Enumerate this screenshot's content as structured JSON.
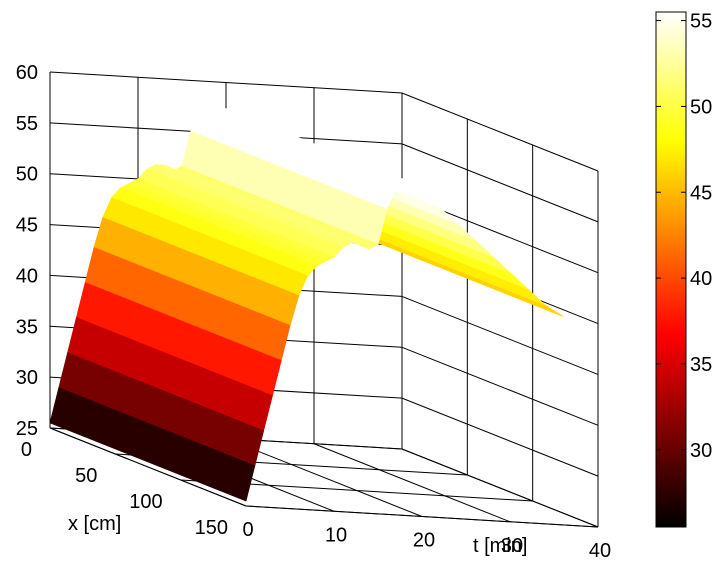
{
  "chart_data": {
    "type": "surface",
    "colormap": "hot",
    "grid": true,
    "xlabel": "x [cm]",
    "ylabel": "t [min]",
    "zlabel": "",
    "xlim": [
      0,
      150
    ],
    "ylim": [
      0,
      40
    ],
    "zlim": [
      25,
      60
    ],
    "xticks": [
      "0",
      "50",
      "100",
      "150"
    ],
    "yticks": [
      "0",
      "10",
      "20",
      "30",
      "40"
    ],
    "zticks": [
      "25",
      "30",
      "35",
      "40",
      "45",
      "50",
      "55",
      "60"
    ],
    "colorbar": {
      "ticks": [
        "30",
        "35",
        "40",
        "45",
        "50",
        "55"
      ],
      "range": [
        25.5,
        55.5
      ]
    },
    "x": [
      0,
      150
    ],
    "t": [
      0,
      1,
      2,
      3,
      4,
      5,
      6,
      7,
      8,
      9,
      10,
      11,
      12,
      13,
      14,
      15,
      16,
      17,
      18,
      20,
      22,
      24,
      26,
      28,
      30,
      32,
      34,
      36
    ],
    "values_at_x0": [
      25.5,
      29,
      32.5,
      36,
      39.5,
      43,
      46,
      48,
      49,
      49.5,
      50,
      51,
      51.5,
      51.5,
      51,
      51.5,
      55,
      57,
      58,
      57,
      55.5,
      54,
      52.5,
      51,
      49.5,
      48,
      46.5,
      45.5
    ],
    "values_at_x150": [
      25.5,
      29,
      32.5,
      36,
      39.5,
      43,
      46,
      48,
      49,
      49.5,
      50,
      51,
      51.5,
      51.5,
      51,
      51.5,
      55,
      57,
      58,
      57,
      55.5,
      54,
      52.5,
      51,
      49.5,
      48,
      46.5,
      45.5
    ]
  }
}
